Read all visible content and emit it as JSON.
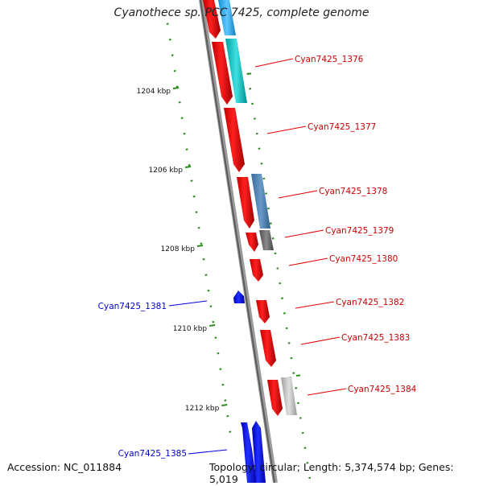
{
  "title": "Cyanothece sp. PCC 7425, complete genome",
  "footer": {
    "accession": "Accession: NC_011884",
    "topology": "Topology: circular; Length: 5,374,574 bp; Genes: 5,019"
  },
  "colors": {
    "forward_gene": "#ff0000",
    "reverse_gene": "#0000ff",
    "forward_label": "#cc0000",
    "reverse_label": "#0000cc",
    "tick": "#2e8b22",
    "backbone": "#888888"
  },
  "kbp_ticks": [
    {
      "kbp": 1204,
      "label": "1204 kbp"
    },
    {
      "kbp": 1206,
      "label": "1206 kbp"
    },
    {
      "kbp": 1208,
      "label": "1208 kbp"
    },
    {
      "kbp": 1210,
      "label": "1210 kbp"
    },
    {
      "kbp": 1212,
      "label": "1212 kbp"
    }
  ],
  "genes": [
    {
      "label": "",
      "strand": "+"
    },
    {
      "label": "Cyan7425_1376",
      "strand": "+"
    },
    {
      "label": "Cyan7425_1377",
      "strand": "+"
    },
    {
      "label": "Cyan7425_1378",
      "strand": "+"
    },
    {
      "label": "Cyan7425_1379",
      "strand": "+"
    },
    {
      "label": "Cyan7425_1380",
      "strand": "+"
    },
    {
      "label": "Cyan7425_1381",
      "strand": "-"
    },
    {
      "label": "Cyan7425_1382",
      "strand": "+"
    },
    {
      "label": "Cyan7425_1383",
      "strand": "+"
    },
    {
      "label": "Cyan7425_1384",
      "strand": "+"
    },
    {
      "label": "Cyan7425_1385",
      "strand": "-"
    }
  ]
}
